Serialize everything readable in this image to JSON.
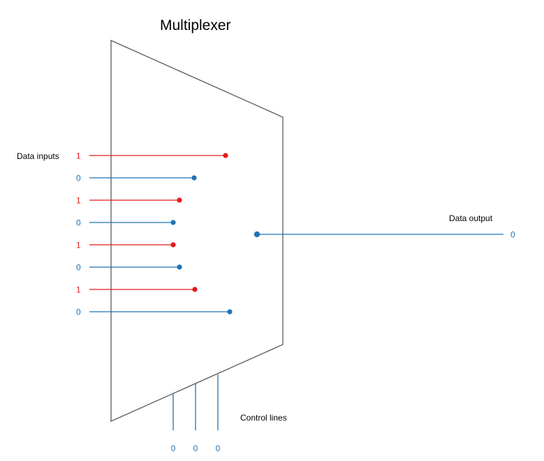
{
  "title": "Multiplexer",
  "labels": {
    "data_inputs": "Data inputs",
    "data_output": "Data output",
    "control_lines": "Control lines"
  },
  "colors": {
    "one": "#e31b1b",
    "zero": "#1f73b7",
    "outline": "#595959",
    "text": "#000000"
  },
  "data_inputs": [
    {
      "value": "1"
    },
    {
      "value": "0"
    },
    {
      "value": "1"
    },
    {
      "value": "0"
    },
    {
      "value": "1"
    },
    {
      "value": "0"
    },
    {
      "value": "1"
    },
    {
      "value": "0"
    }
  ],
  "data_output": {
    "value": "0"
  },
  "control_lines": [
    {
      "value": "0"
    },
    {
      "value": "0"
    },
    {
      "value": "0"
    }
  ]
}
